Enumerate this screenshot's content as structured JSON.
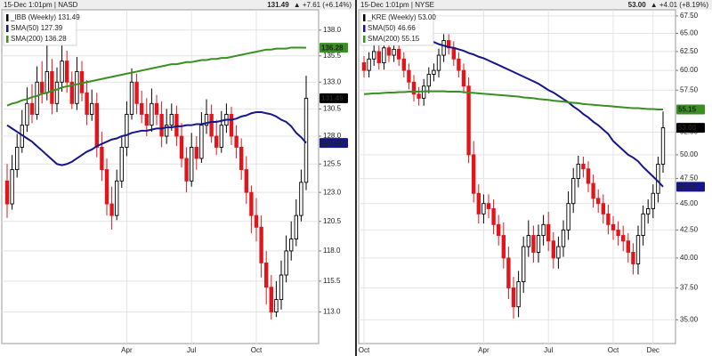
{
  "chart_data": [
    {
      "type": "candlestick",
      "header_left": "15-Dec 1:01pm | NASD",
      "last": "131.49",
      "change": "▲ +7.61 (+6.14%)",
      "log_scale": true,
      "grid": true,
      "up_color": "#000000",
      "down_color": "#e3151b",
      "change_color": "#1f9a1f",
      "ylim": [
        110.5,
        140.0
      ],
      "yticks": [
        {
          "value": 113,
          "label": "113.0"
        },
        {
          "value": 115.5,
          "label": "115.5"
        },
        {
          "value": 118,
          "label": "118.0"
        },
        {
          "value": 120.5,
          "label": "120.5"
        },
        {
          "value": 123,
          "label": "123.0"
        },
        {
          "value": 125.5,
          "label": "125.5"
        },
        {
          "value": 128,
          "label": "128.0"
        },
        {
          "value": 130.5,
          "label": "130.5"
        },
        {
          "value": 133,
          "label": "133.0"
        },
        {
          "value": 135.5,
          "label": "135.5"
        },
        {
          "value": 138,
          "label": "138.0"
        }
      ],
      "categories": [
        null,
        null,
        null,
        null,
        null,
        null,
        null,
        null,
        null,
        null,
        null,
        null,
        null,
        null,
        null,
        null,
        null,
        null,
        null,
        null,
        null,
        null,
        null,
        null,
        "Apr",
        null,
        null,
        null,
        null,
        null,
        null,
        null,
        null,
        null,
        null,
        null,
        null,
        "Jul",
        null,
        null,
        null,
        null,
        null,
        null,
        null,
        null,
        null,
        null,
        null,
        null,
        "Oct",
        null,
        null,
        null,
        null,
        null,
        null,
        null,
        null,
        null,
        null
      ],
      "series": [
        {
          "name": "_IBB (Weekly) 131.49",
          "color": "#000000",
          "last_label": "131.49",
          "open": [
            124,
            122,
            125,
            127,
            129,
            131,
            130,
            133,
            132,
            134,
            131,
            133,
            135,
            133,
            131,
            134,
            132,
            130,
            131,
            127,
            125,
            122,
            121,
            124,
            127,
            130,
            133,
            131,
            130,
            129,
            131,
            130,
            128,
            129,
            130,
            128,
            126,
            124,
            127,
            126,
            129,
            130,
            128,
            127,
            129,
            130,
            128,
            127,
            125,
            123,
            121,
            120,
            117,
            115,
            113,
            114,
            116,
            118,
            119,
            121,
            123.88
          ],
          "high": [
            125.5,
            126.3,
            128.2,
            130.4,
            132.5,
            132.8,
            134.5,
            135,
            137,
            135.2,
            134.4,
            136.5,
            136,
            134,
            135.4,
            135,
            133.2,
            132.3,
            132,
            128.4,
            126,
            123.5,
            125,
            128,
            131.2,
            134.3,
            133.8,
            132.2,
            131.5,
            132.4,
            131.8,
            131.2,
            130.5,
            131,
            130.8,
            129.2,
            127,
            128.3,
            128,
            130.2,
            131.4,
            130.9,
            129.5,
            130.3,
            131,
            130.7,
            129,
            127.8,
            126.2,
            123.6,
            122.5,
            121,
            118,
            116,
            115.5,
            117.2,
            119.3,
            120.5,
            122.4,
            125,
            133.6
          ],
          "low": [
            120.8,
            121.5,
            124.3,
            126.5,
            128.4,
            129.2,
            129.5,
            131,
            131.3,
            130,
            130.2,
            132.1,
            132,
            130.5,
            130.4,
            131.2,
            129,
            129.4,
            126.1,
            124,
            121,
            119.8,
            120.6,
            123.4,
            126.2,
            129.5,
            130,
            129.2,
            128,
            128.4,
            129,
            127,
            127.3,
            128.5,
            127.1,
            125.2,
            123,
            123.5,
            125,
            125.6,
            128.2,
            127.4,
            126.3,
            126.5,
            128.3,
            127.2,
            126,
            124.1,
            122,
            119.5,
            118.8,
            115.8,
            113.6,
            112.4,
            112.6,
            113.2,
            115.4,
            117.2,
            118.4,
            120.5,
            123.2
          ],
          "close": [
            122,
            125,
            127,
            129,
            131,
            130,
            133,
            132,
            134,
            131,
            133,
            135,
            133,
            131,
            134,
            132,
            130,
            131,
            127,
            125,
            122,
            121,
            124,
            127,
            130,
            133,
            131,
            130,
            129,
            131,
            130,
            128,
            129,
            130,
            128,
            126,
            124,
            127,
            126,
            129,
            130,
            128,
            127,
            129,
            130,
            128,
            127,
            125,
            123,
            121,
            120,
            117,
            115,
            113,
            114,
            116,
            118,
            119,
            121,
            123.88,
            131.49
          ]
        },
        {
          "name": "SMA(50) 127.39",
          "color": "#16168a",
          "last_label": "127.39",
          "values": [
            129,
            128.7,
            128.4,
            128.1,
            127.8,
            127.5,
            127.1,
            126.7,
            126.3,
            125.9,
            125.5,
            125.4,
            125.5,
            125.7,
            126,
            126.3,
            126.6,
            126.8,
            127.1,
            127.3,
            127.5,
            127.7,
            127.8,
            128,
            128.1,
            128.3,
            128.4,
            128.5,
            128.5,
            128.6,
            128.7,
            128.7,
            128.8,
            128.8,
            128.9,
            128.9,
            129,
            129,
            129.1,
            129.1,
            129.2,
            129.3,
            129.3,
            129.4,
            129.5,
            129.5,
            129.6,
            129.8,
            129.9,
            130.1,
            130.2,
            130.2,
            130.1,
            130,
            129.8,
            129.5,
            129.3,
            128.9,
            128.3,
            127.9,
            127.39
          ]
        },
        {
          "name": "SMA(200) 136.28",
          "color": "#3a8f22",
          "last_label": "136.28",
          "values": [
            130.8,
            131,
            131.1,
            131.3,
            131.4,
            131.6,
            131.7,
            131.9,
            132,
            132.2,
            132.3,
            132.5,
            132.6,
            132.7,
            132.8,
            132.9,
            133,
            133.1,
            133.2,
            133.3,
            133.4,
            133.5,
            133.6,
            133.7,
            133.8,
            133.9,
            134,
            134.1,
            134.2,
            134.3,
            134.4,
            134.5,
            134.6,
            134.7,
            134.7,
            134.8,
            134.9,
            134.9,
            135,
            135.1,
            135.1,
            135.2,
            135.2,
            135.3,
            135.3,
            135.4,
            135.5,
            135.6,
            135.7,
            135.8,
            135.9,
            136,
            136.1,
            136.1,
            136.2,
            136.2,
            136.2,
            136.3,
            136.3,
            136.3,
            136.28
          ]
        }
      ]
    },
    {
      "type": "candlestick",
      "header_left": "15-Dec 1:01pm | NYSE",
      "last": "53.00",
      "change": "▲ +4.01 (+8.19%)",
      "log_scale": true,
      "grid": true,
      "up_color": "#000000",
      "down_color": "#e3151b",
      "change_color": "#1f9a1f",
      "ylim": [
        33.25,
        68.4
      ],
      "yticks": [
        {
          "value": 35,
          "label": "35.00"
        },
        {
          "value": 37.5,
          "label": "37.50"
        },
        {
          "value": 40,
          "label": "40.00"
        },
        {
          "value": 42.5,
          "label": "42.50"
        },
        {
          "value": 45,
          "label": "45.00"
        },
        {
          "value": 47.5,
          "label": "47.50"
        },
        {
          "value": 50,
          "label": "50.00"
        },
        {
          "value": 52.5,
          "label": "52.50"
        },
        {
          "value": 57.5,
          "label": "57.50"
        },
        {
          "value": 60,
          "label": "60.00"
        },
        {
          "value": 62.5,
          "label": "62.50"
        },
        {
          "value": 65,
          "label": "65.00"
        },
        {
          "value": 67.5,
          "label": "67.50"
        }
      ],
      "categories": [
        "Oct",
        null,
        null,
        null,
        null,
        null,
        null,
        null,
        null,
        null,
        null,
        null,
        null,
        null,
        null,
        null,
        null,
        null,
        null,
        null,
        null,
        null,
        null,
        null,
        "Apr",
        null,
        null,
        null,
        null,
        null,
        null,
        null,
        null,
        null,
        null,
        null,
        null,
        "Jul",
        null,
        null,
        null,
        null,
        null,
        null,
        null,
        null,
        null,
        null,
        null,
        null,
        "Oct",
        null,
        null,
        null,
        null,
        null,
        null,
        null,
        "Dec",
        null,
        null
      ],
      "series": [
        {
          "name": "_KRE (Weekly) 53.00",
          "color": "#000000",
          "last_label": "53.00",
          "open": [
            61,
            60,
            61.5,
            62.5,
            61,
            63,
            62,
            62.8,
            61.5,
            60,
            58.5,
            57,
            56.5,
            58,
            59.5,
            60,
            62,
            64,
            63,
            61.5,
            60,
            58,
            50,
            46,
            44,
            45,
            44.5,
            43,
            42,
            40,
            37.5,
            36,
            38,
            41,
            42,
            40.5,
            42,
            43,
            41.5,
            40,
            41,
            42.5,
            45,
            47.5,
            49,
            48.5,
            47,
            45.5,
            45,
            44,
            43,
            42.5,
            42,
            41.5,
            40.5,
            39.5,
            42,
            44,
            44.5,
            46,
            48.99
          ],
          "high": [
            61.9,
            62.4,
            63.4,
            63.4,
            63.9,
            63.9,
            63.7,
            63.7,
            62.4,
            60.9,
            59.4,
            57.9,
            58.9,
            60.4,
            60.9,
            62.9,
            64.9,
            64.9,
            63.9,
            62.4,
            60.9,
            59.1,
            51.5,
            46.9,
            45.9,
            45.9,
            45.4,
            43.9,
            43.2,
            41,
            38.4,
            38.9,
            41.9,
            43.4,
            42.9,
            43,
            43.9,
            44.2,
            42.3,
            41.9,
            43.4,
            46.2,
            48.6,
            49.9,
            49.8,
            49.3,
            47.9,
            46.4,
            45.9,
            44.9,
            43.8,
            43.3,
            42.9,
            42.2,
            41.3,
            42.9,
            44.8,
            45.4,
            46.9,
            49.8,
            54.9
          ],
          "low": [
            59.1,
            59.1,
            60.6,
            60.1,
            60.1,
            61.1,
            61.1,
            60.6,
            59.1,
            57.6,
            56.1,
            55.6,
            55.6,
            57.1,
            58.6,
            59.1,
            61.1,
            62.1,
            60.6,
            59.1,
            57.1,
            49.1,
            45.1,
            43.1,
            43.1,
            43.6,
            42.1,
            41.1,
            39.1,
            36.6,
            35.1,
            35.2,
            37.1,
            40.1,
            39.6,
            39.6,
            41.1,
            40.6,
            39.1,
            39.1,
            40.1,
            41.6,
            44.1,
            46.6,
            47.6,
            46.1,
            44.6,
            44.1,
            43.1,
            42.1,
            41.6,
            41.1,
            40.6,
            39.6,
            38.6,
            38.6,
            41.1,
            43.1,
            43.6,
            45.1,
            48.1
          ],
          "close": [
            60,
            61.5,
            62.5,
            61,
            63,
            62,
            62.8,
            61.5,
            60,
            58.5,
            57,
            56.5,
            58,
            59.5,
            60,
            62,
            64,
            63,
            61.5,
            60,
            58,
            50,
            46,
            44,
            45,
            44.5,
            43,
            42,
            40,
            37.5,
            36,
            38,
            41,
            42,
            40.5,
            42,
            43,
            41.5,
            40,
            41,
            42.5,
            45,
            47.5,
            49,
            48.5,
            47,
            45.5,
            45,
            44,
            43,
            42.5,
            42,
            41.5,
            40.5,
            39.5,
            42,
            44,
            44.5,
            46,
            48.99,
            53
          ]
        },
        {
          "name": "SMA(50) 46.66",
          "color": "#16168a",
          "last_label": "46.66",
          "values": [
            null,
            null,
            null,
            null,
            null,
            null,
            null,
            null,
            null,
            null,
            64.8,
            64.6,
            64.3,
            64,
            63.8,
            63.5,
            63.3,
            63.1,
            63,
            62.8,
            62.6,
            62.3,
            62.1,
            61.8,
            61.6,
            61.3,
            61,
            60.7,
            60.4,
            60.1,
            59.8,
            59.5,
            59.2,
            58.9,
            58.6,
            58.3,
            57.9,
            57.5,
            57.2,
            56.8,
            56.4,
            56,
            55.5,
            55.1,
            54.6,
            54.2,
            53.7,
            53.3,
            52.8,
            52.3,
            51.5,
            51,
            50.5,
            50,
            49.7,
            49.3,
            48.7,
            48.2,
            47.7,
            47.2,
            46.66
          ]
        },
        {
          "name": "SMA(200) 55.15",
          "color": "#3a8f22",
          "last_label": "55.15",
          "values": [
            57,
            57.05,
            57.1,
            57.1,
            57.15,
            57.2,
            57.2,
            57.25,
            57.25,
            57.3,
            57.3,
            57.3,
            57.35,
            57.35,
            57.35,
            57.35,
            57.35,
            57.3,
            57.3,
            57.3,
            57.25,
            57.2,
            57.15,
            57.1,
            57.05,
            57,
            56.95,
            56.9,
            56.85,
            56.8,
            56.75,
            56.7,
            56.6,
            56.55,
            56.5,
            56.4,
            56.35,
            56.3,
            56.2,
            56.15,
            56.1,
            56,
            55.95,
            55.9,
            55.8,
            55.75,
            55.7,
            55.65,
            55.6,
            55.55,
            55.5,
            55.45,
            55.4,
            55.35,
            55.3,
            55.3,
            55.25,
            55.2,
            55.2,
            55.15,
            55.15
          ]
        }
      ]
    }
  ]
}
